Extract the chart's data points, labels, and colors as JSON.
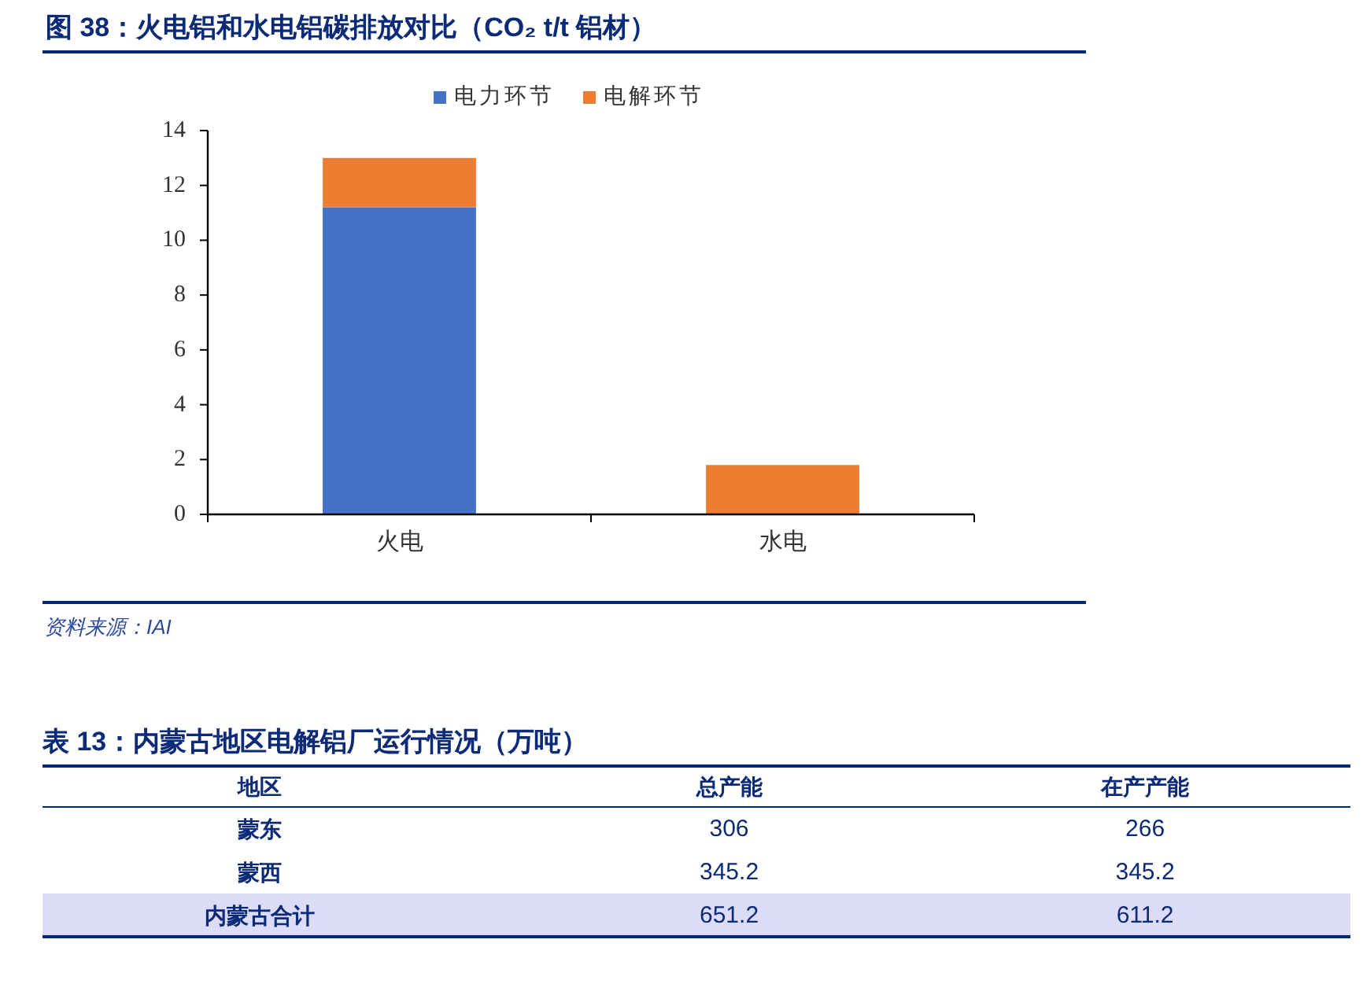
{
  "chart_data": [
    {
      "type": "bar",
      "title": "图 38：火电铝和水电铝碳排放对比（CO₂ t/t 铝材）",
      "categories": [
        "火电",
        "水电"
      ],
      "series": [
        {
          "name": "电力环节",
          "color": "#4472c4",
          "values": [
            11.2,
            0
          ]
        },
        {
          "name": "电解环节",
          "color": "#ed7d31",
          "values": [
            1.8,
            1.8
          ]
        }
      ],
      "stacked": true,
      "ylim": [
        0,
        14
      ],
      "yticks": [
        0,
        2,
        4,
        6,
        8,
        10,
        12,
        14
      ],
      "legend": "top",
      "annotations": [
        "资料来源：IAI"
      ]
    },
    {
      "type": "other",
      "title": "表 13：内蒙古地区电解铝厂运行情况（万吨）",
      "ylabel": "地区",
      "categories": [
        "蒙东",
        "蒙西",
        "内蒙古合计"
      ],
      "series": [
        {
          "name": "总产能",
          "values": [
            306,
            345.2,
            651.2
          ]
        },
        {
          "name": "在产产能",
          "values": [
            266,
            345.2,
            611.2
          ]
        }
      ],
      "colors": [
        "#ffffff",
        "#ffffff",
        "#dcdcf8"
      ],
      "data_labels": true
    }
  ]
}
